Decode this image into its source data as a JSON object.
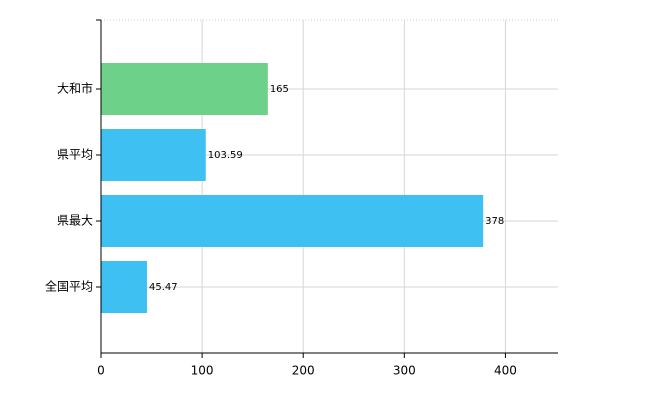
{
  "chart_data": {
    "type": "hbar",
    "categories": [
      "大和市",
      "県平均",
      "県最大",
      "全国平均"
    ],
    "values": [
      165,
      103.59,
      378,
      45.47
    ],
    "colors": [
      "#6dd18a",
      "#3ec0f2",
      "#3ec0f2",
      "#3ec0f2"
    ],
    "xlim": [
      0,
      452
    ],
    "xticks": [
      0,
      100,
      200,
      300,
      400
    ],
    "grid": true
  }
}
